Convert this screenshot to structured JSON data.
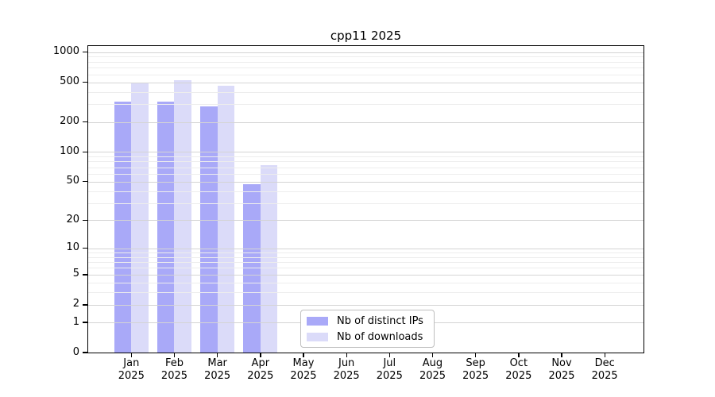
{
  "chart_data": {
    "type": "bar",
    "title": "cpp11 2025",
    "categories": [
      "Jan",
      "Feb",
      "Mar",
      "Apr",
      "May",
      "Jun",
      "Jul",
      "Aug",
      "Sep",
      "Oct",
      "Nov",
      "Dec"
    ],
    "x_year_label": "2025",
    "series": [
      {
        "name": "Nb of distinct IPs",
        "color": "#a9a9f8",
        "values": [
          320,
          320,
          285,
          47,
          0,
          0,
          0,
          0,
          0,
          0,
          0,
          0
        ]
      },
      {
        "name": "Nb of downloads",
        "color": "#dbdbf9",
        "values": [
          490,
          525,
          460,
          73,
          0,
          0,
          0,
          0,
          0,
          0,
          0,
          0
        ]
      }
    ],
    "y_scale": "log1p",
    "y_ticks": [
      0,
      1,
      2,
      5,
      10,
      20,
      50,
      100,
      200,
      500,
      1000
    ],
    "y_minor_ticks": [
      3,
      4,
      6,
      7,
      8,
      9,
      30,
      40,
      60,
      70,
      80,
      90,
      300,
      400,
      600,
      700,
      800,
      900
    ],
    "ylim": [
      0,
      1150
    ],
    "grid": "on",
    "legend_position": "lower-center-inside",
    "colors": {
      "major_grid": "#d4d4d4",
      "minor_grid": "#ededed",
      "axis": "#000000",
      "background": "#ffffff"
    }
  }
}
